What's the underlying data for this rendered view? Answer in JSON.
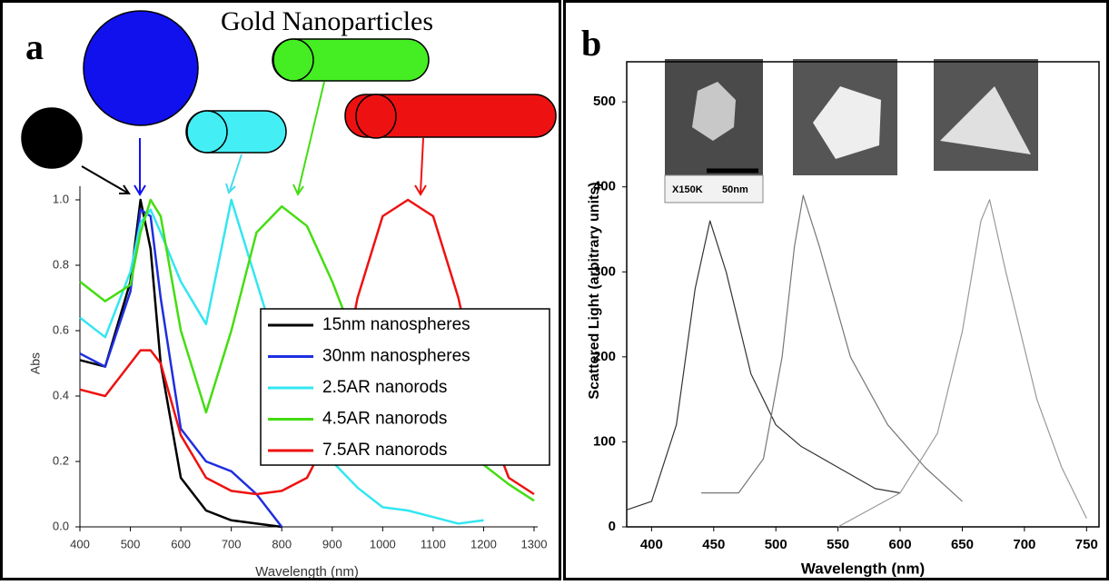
{
  "chart_data": [
    {
      "type": "line",
      "title": "Gold Nanoparticles",
      "panel_label": "a",
      "x_label": "Wavelength (nm)",
      "y_label": "Abs",
      "x": [
        400,
        450,
        500,
        520,
        540,
        560,
        600,
        650,
        700,
        750,
        800,
        850,
        900,
        950,
        1000,
        1050,
        1100,
        1150,
        1200,
        1250,
        1300
      ],
      "series": [
        {
          "name": "15nm nanospheres",
          "color": "#000000",
          "values": [
            0.51,
            0.49,
            0.75,
            1.0,
            0.85,
            0.5,
            0.15,
            0.05,
            0.02,
            0.01,
            0.0,
            null,
            null,
            null,
            null,
            null,
            null,
            null,
            null,
            null,
            null
          ]
        },
        {
          "name": "30nm nanospheres",
          "color": "#1f2ee0",
          "values": [
            0.53,
            0.49,
            0.72,
            0.97,
            0.95,
            0.7,
            0.3,
            0.2,
            0.17,
            0.1,
            0.0,
            null,
            null,
            null,
            null,
            null,
            null,
            null,
            null,
            null,
            null
          ]
        },
        {
          "name": "2.5AR nanorods",
          "color": "#33e6f0",
          "values": [
            0.64,
            0.58,
            0.78,
            0.93,
            0.97,
            0.9,
            0.75,
            0.62,
            1.0,
            0.75,
            0.5,
            0.33,
            0.2,
            0.12,
            0.06,
            0.05,
            0.03,
            0.01,
            0.02,
            null,
            null
          ]
        },
        {
          "name": "4.5AR nanorods",
          "color": "#44dd11",
          "values": [
            0.75,
            0.69,
            0.74,
            0.9,
            1.0,
            0.95,
            0.6,
            0.35,
            0.6,
            0.9,
            0.98,
            0.92,
            0.75,
            0.55,
            0.4,
            0.3,
            0.25,
            0.22,
            0.19,
            0.13,
            0.08
          ]
        },
        {
          "name": "7.5AR nanorods",
          "color": "#ee1111",
          "values": [
            0.42,
            0.4,
            0.5,
            0.54,
            0.54,
            0.5,
            0.28,
            0.15,
            0.11,
            0.1,
            0.11,
            0.15,
            0.3,
            0.7,
            0.95,
            1.0,
            0.95,
            0.7,
            0.35,
            0.15,
            0.1
          ]
        }
      ],
      "xlim": [
        400,
        1300
      ],
      "xticks": [
        400,
        500,
        600,
        700,
        800,
        900,
        1000,
        1100,
        1200,
        1300
      ],
      "ylim": [
        0,
        1
      ],
      "yticks": [
        {
          "value": 0,
          "label": "0.0"
        },
        0.2,
        0.4,
        0.6,
        0.8,
        {
          "value": 1,
          "label": "1.0"
        }
      ],
      "legend": "center right"
    },
    {
      "type": "line",
      "panel_label": "b",
      "x_label": "Wavelength (nm)",
      "y_label": "Scattered Light (arbitrary units)",
      "annotations": [
        "X150K",
        "50nm"
      ],
      "series": [
        {
          "color": "#333333",
          "x": [
            380,
            400,
            420,
            435,
            447,
            460,
            480,
            500,
            520,
            550,
            580,
            600
          ],
          "values": [
            20,
            30,
            120,
            280,
            360,
            300,
            180,
            120,
            95,
            70,
            45,
            40
          ]
        },
        {
          "color": "#777777",
          "x": [
            440,
            470,
            490,
            505,
            515,
            522,
            535,
            560,
            590,
            620,
            650
          ],
          "values": [
            40,
            40,
            80,
            200,
            330,
            390,
            330,
            200,
            120,
            70,
            30
          ]
        },
        {
          "color": "#999999",
          "x": [
            550,
            600,
            630,
            650,
            665,
            672,
            685,
            710,
            730,
            750
          ],
          "values": [
            0,
            40,
            110,
            230,
            360,
            385,
            300,
            150,
            70,
            10
          ]
        }
      ],
      "xlim": [
        380,
        760
      ],
      "xticks": [
        400,
        450,
        500,
        550,
        600,
        650,
        700,
        750
      ],
      "ylim": [
        0,
        560
      ],
      "yticks": [
        0,
        100,
        200,
        300,
        400,
        500
      ]
    }
  ]
}
